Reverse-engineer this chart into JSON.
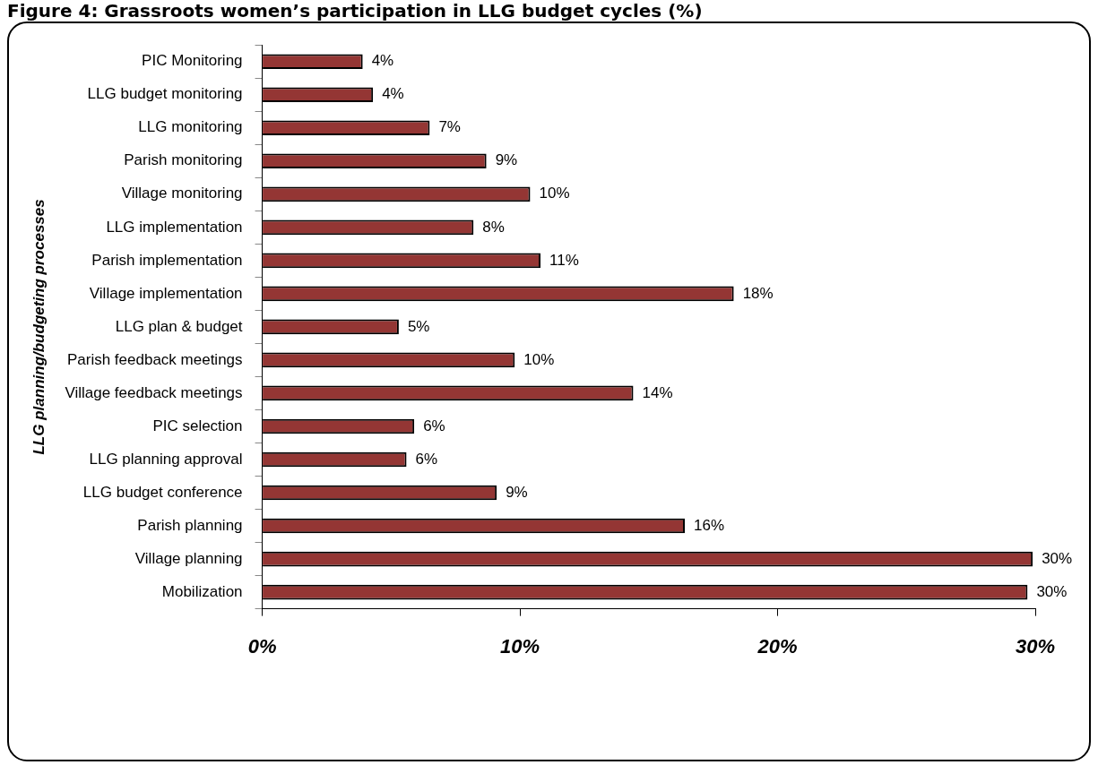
{
  "chart_data": {
    "type": "bar",
    "orientation": "horizontal",
    "title": "Figure 4:  Grassroots women’s participation in LLG budget cycles (%)",
    "ylabel": "LLG planning/budgeting processes",
    "categories": [
      "PIC Monitoring",
      "LLG budget monitoring",
      "LLG monitoring",
      "Parish monitoring",
      "Village monitoring",
      "LLG implementation",
      "Parish implementation",
      "Village implementation",
      "LLG plan & budget",
      "Parish feedback meetings",
      "Village feedback meetings",
      "PIC selection",
      "LLG planning approval",
      "LLG budget conference",
      "Parish planning",
      "Village planning",
      "Mobilization"
    ],
    "values": [
      3.9,
      4.3,
      6.5,
      8.7,
      10.4,
      8.2,
      10.8,
      18.3,
      5.3,
      9.8,
      14.4,
      5.9,
      5.6,
      9.1,
      16.4,
      29.9,
      29.7
    ],
    "value_labels": [
      "4%",
      "4%",
      "7%",
      "9%",
      "10%",
      "8%",
      "11%",
      "18%",
      "5%",
      "10%",
      "14%",
      "6%",
      "6%",
      "9%",
      "16%",
      "30%",
      "30%"
    ],
    "color": "#943634",
    "xlim": [
      0,
      30
    ],
    "xticks": [
      {
        "value": 0,
        "label": "0%"
      },
      {
        "value": 10,
        "label": "10%"
      },
      {
        "value": 20,
        "label": "20%"
      },
      {
        "value": 30,
        "label": "30%"
      }
    ],
    "grid": false,
    "legend": false
  }
}
